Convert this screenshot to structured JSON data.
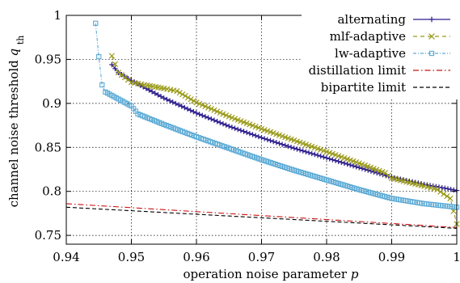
{
  "chart_data": {
    "type": "line",
    "xlabel_text": "operation noise parameter",
    "xlabel_var": "p",
    "ylabel_text": "channel noise threshold",
    "ylabel_var": "q",
    "ylabel_sub": "th",
    "xlim": [
      0.94,
      1.0
    ],
    "ylim": [
      0.74,
      1.0
    ],
    "x_ticks": [
      "0.94",
      "0.95",
      "0.96",
      "0.97",
      "0.98",
      "0.99",
      "1"
    ],
    "y_ticks": [
      "0.75",
      "0.8",
      "0.85",
      "0.9",
      "0.95",
      "1"
    ],
    "grid": true,
    "legend_position": "top-right",
    "series": [
      {
        "name": "alternating",
        "color": "#2e1f8f",
        "marker": "plus",
        "x": [
          0.947,
          0.948,
          0.95,
          0.955,
          0.96,
          0.965,
          0.97,
          0.975,
          0.98,
          0.985,
          0.99,
          0.995,
          1.0
        ],
        "y": [
          0.944,
          0.935,
          0.926,
          0.906,
          0.889,
          0.874,
          0.861,
          0.849,
          0.838,
          0.827,
          0.816,
          0.808,
          0.801
        ]
      },
      {
        "name": "mlf-adaptive",
        "color": "#9a9a1a",
        "marker": "cross",
        "x": [
          0.947,
          0.948,
          0.95,
          0.952,
          0.955,
          0.957,
          0.96,
          0.965,
          0.97,
          0.975,
          0.98,
          0.985,
          0.989,
          0.99,
          0.995,
          0.997,
          0.999,
          1.0
        ],
        "y": [
          0.954,
          0.935,
          0.924,
          0.921,
          0.917,
          0.914,
          0.901,
          0.885,
          0.871,
          0.858,
          0.845,
          0.832,
          0.821,
          0.815,
          0.806,
          0.802,
          0.792,
          0.763
        ]
      },
      {
        "name": "lw-adaptive",
        "color": "#5aaad5",
        "marker": "square",
        "x": [
          0.9445,
          0.945,
          0.9455,
          0.946,
          0.948,
          0.95,
          0.951,
          0.955,
          0.96,
          0.965,
          0.97,
          0.975,
          0.98,
          0.985,
          0.99,
          0.995,
          1.0
        ],
        "y": [
          0.991,
          0.953,
          0.921,
          0.913,
          0.905,
          0.897,
          0.888,
          0.876,
          0.862,
          0.849,
          0.836,
          0.824,
          0.813,
          0.802,
          0.792,
          0.786,
          0.782
        ]
      },
      {
        "name": "distillation limit",
        "color": "#cc1111",
        "marker": "none",
        "x": [
          0.94,
          1.0
        ],
        "y": [
          0.786,
          0.759
        ]
      },
      {
        "name": "bipartite limit",
        "color": "#000000",
        "marker": "none",
        "x": [
          0.94,
          1.0
        ],
        "y": [
          0.782,
          0.758
        ]
      }
    ]
  }
}
